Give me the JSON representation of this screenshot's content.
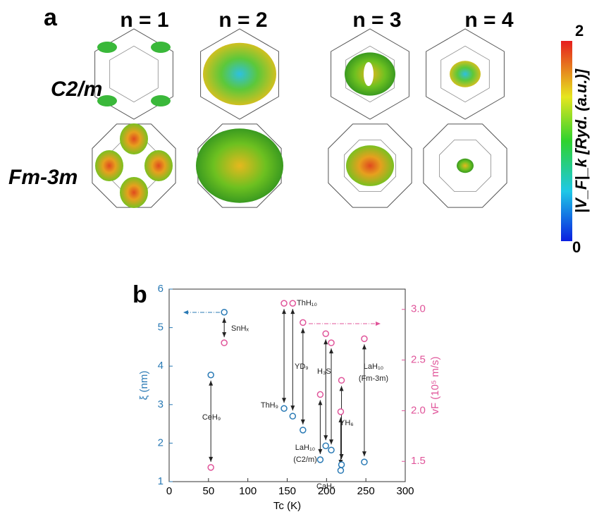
{
  "panel_a": {
    "label": "a",
    "columns": [
      "n = 1",
      "n = 2",
      "n = 3",
      "n = 4"
    ],
    "rows": [
      "C2/m",
      "Fm-3m"
    ],
    "colorbar": {
      "label": "|V_F|_k [Ryd. (a.u.)]",
      "max": 2,
      "min": 0
    }
  },
  "chart_data": {
    "type": "scatter",
    "label": "b",
    "x_label": "Tc (K)",
    "y_label": "ξ (nm)",
    "y2_label": "vF (10⁵ m/s)",
    "xlim": [
      0,
      300
    ],
    "xticks": [
      0,
      50,
      100,
      150,
      200,
      250,
      300
    ],
    "ylim": [
      1,
      6
    ],
    "yticks": [
      1,
      2,
      3,
      4,
      5,
      6
    ],
    "y2lim": [
      1.3,
      3.2
    ],
    "y2ticks": [
      {
        "value": 1.5,
        "label": "1.5"
      },
      {
        "value": 2.0,
        "label": "2.0"
      },
      {
        "value": 2.5,
        "label": "2.5"
      },
      {
        "value": 3.0,
        "label": "3.0"
      }
    ],
    "series": [
      {
        "color": "#2a7ab5",
        "x": [
          70,
          53,
          146,
          157,
          170,
          199,
          206,
          192,
          218,
          219,
          248
        ],
        "values": [
          5.4,
          3.77,
          2.9,
          2.7,
          2.34,
          1.93,
          1.82,
          1.57,
          1.29,
          1.44,
          1.51
        ]
      },
      {
        "color": "#e0559a",
        "axis": "y2",
        "x": [
          70,
          53,
          146,
          157,
          170,
          199,
          206,
          192,
          218,
          219,
          248
        ],
        "values": [
          2.67,
          1.44,
          3.06,
          3.06,
          2.87,
          2.76,
          2.67,
          2.16,
          1.99,
          2.3,
          2.71
        ]
      }
    ],
    "annotations": [
      "SnHₓ",
      "CeH₉",
      "ThH₉",
      "ThH₁₀",
      "YD₉",
      "H₃S",
      "LaH₁₀",
      "(C2/m)",
      "CaHₓ",
      "YH₆",
      "LaH₁₀",
      "(Fm-3m)"
    ]
  }
}
